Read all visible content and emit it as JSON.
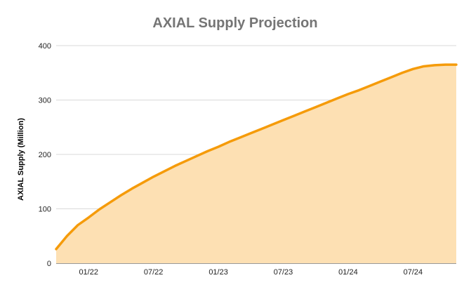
{
  "chart_data": {
    "type": "area",
    "title": "AXIAL Supply Projection",
    "xlabel": "",
    "ylabel": "AXIAL Supply (Million)",
    "ylim": [
      0,
      400
    ],
    "y_ticks": [
      "0",
      "100",
      "200",
      "300",
      "400"
    ],
    "x_ticks": [
      {
        "label": "01/22",
        "x": "2022-01"
      },
      {
        "label": "07/22",
        "x": "2022-07"
      },
      {
        "label": "01/23",
        "x": "2023-01"
      },
      {
        "label": "07/23",
        "x": "2023-07"
      },
      {
        "label": "01/24",
        "x": "2024-01"
      },
      {
        "label": "07/24",
        "x": "2024-07"
      }
    ],
    "grid": true,
    "legend": "none",
    "series": [
      {
        "x": [
          "2021-10",
          "2021-11",
          "2021-12",
          "2022-01",
          "2022-02",
          "2022-03",
          "2022-04",
          "2022-05",
          "2022-06",
          "2022-07",
          "2022-08",
          "2022-09",
          "2022-10",
          "2022-11",
          "2022-12",
          "2023-01",
          "2023-02",
          "2023-03",
          "2023-04",
          "2023-05",
          "2023-06",
          "2023-07",
          "2023-08",
          "2023-09",
          "2023-10",
          "2023-11",
          "2023-12",
          "2024-01",
          "2024-02",
          "2024-03",
          "2024-04",
          "2024-05",
          "2024-06",
          "2024-07",
          "2024-08",
          "2024-09",
          "2024-10",
          "2024-11"
        ],
        "values": [
          26,
          50,
          70,
          84,
          99,
          112,
          125,
          137,
          148,
          159,
          169,
          179,
          188,
          197,
          206,
          214,
          223,
          231,
          239,
          247,
          255,
          263,
          271,
          279,
          287,
          295,
          303,
          311,
          318,
          326,
          334,
          342,
          350,
          357,
          362,
          364,
          365,
          365
        ]
      }
    ],
    "colors": {
      "line": "#f59b0a",
      "fill": "#fde0b3",
      "grid": "#d9d9d9",
      "axis": "#333333"
    }
  }
}
